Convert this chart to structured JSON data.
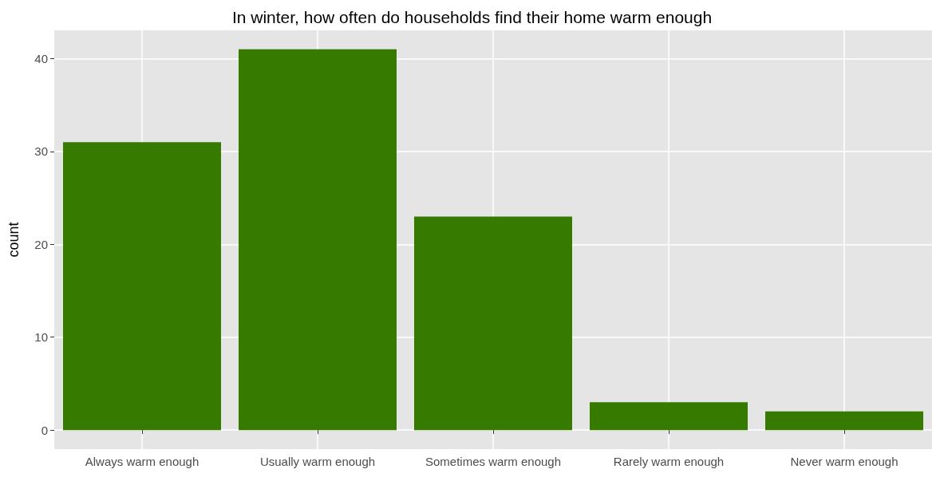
{
  "chart_data": {
    "type": "bar",
    "title": "In winter, how often do households find their home warm enough",
    "ylabel": "count",
    "categories": [
      "Always warm enough",
      "Usually warm enough",
      "Sometimes warm enough",
      "Rarely warm enough",
      "Never warm enough"
    ],
    "values": [
      31,
      41,
      23,
      3,
      2
    ],
    "color": "#367a00",
    "ylim": [
      -2.05,
      43.05
    ],
    "yticks": [
      0,
      10,
      20,
      30,
      40
    ],
    "grid": true
  }
}
